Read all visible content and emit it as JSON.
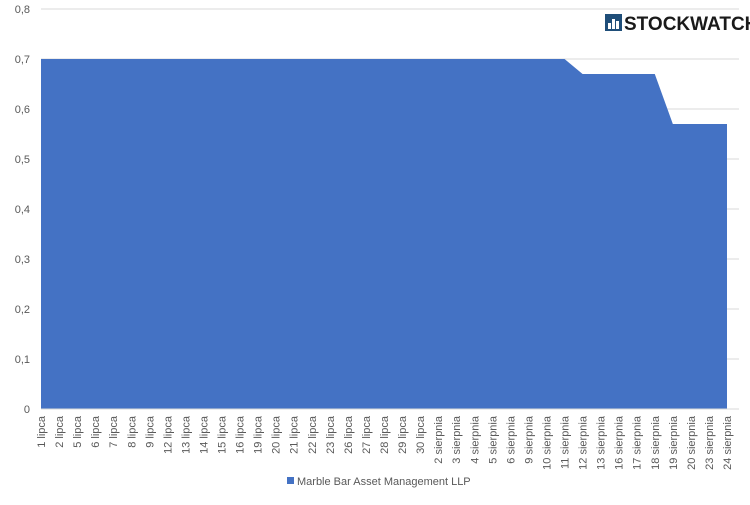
{
  "chart_data": {
    "type": "area",
    "brand": "STOCKWATCH",
    "categories": [
      "1 lipca",
      "2 lipca",
      "5 lipca",
      "6 lipca",
      "7 lipca",
      "8 lipca",
      "9 lipca",
      "12 lipca",
      "13 lipca",
      "14 lipca",
      "15 lipca",
      "16 lipca",
      "19 lipca",
      "20 lipca",
      "21 lipca",
      "22 lipca",
      "23 lipca",
      "26 lipca",
      "27 lipca",
      "28 lipca",
      "29 lipca",
      "30 lipca",
      "2 sierpnia",
      "3 sierpnia",
      "4 sierpnia",
      "5 sierpnia",
      "6 sierpnia",
      "9 sierpnia",
      "10 sierpnia",
      "11 sierpnia",
      "12 sierpnia",
      "13 sierpnia",
      "16 sierpnia",
      "17 sierpnia",
      "18 sierpnia",
      "19 sierpnia",
      "20 sierpnia",
      "23 sierpnia",
      "24 sierpnia"
    ],
    "series": [
      {
        "name": "Marble Bar Asset Management LLP",
        "color": "#4472c4",
        "values": [
          0.7,
          0.7,
          0.7,
          0.7,
          0.7,
          0.7,
          0.7,
          0.7,
          0.7,
          0.7,
          0.7,
          0.7,
          0.7,
          0.7,
          0.7,
          0.7,
          0.7,
          0.7,
          0.7,
          0.7,
          0.7,
          0.7,
          0.7,
          0.7,
          0.7,
          0.7,
          0.7,
          0.7,
          0.7,
          0.7,
          0.67,
          0.67,
          0.67,
          0.67,
          0.67,
          0.57,
          0.57,
          0.57,
          0.57
        ]
      }
    ],
    "ylim": [
      0,
      0.8
    ],
    "yticks": [
      0,
      {
        "value": 0.1,
        "label": "0,1"
      },
      {
        "value": 0.2,
        "label": "0,2"
      },
      {
        "value": 0.3,
        "label": "0,3"
      },
      {
        "value": 0.4,
        "label": "0,4"
      },
      {
        "value": 0.5,
        "label": "0,5"
      },
      {
        "value": 0.6,
        "label": "0,6"
      },
      {
        "value": 0.7,
        "label": "0,7"
      },
      {
        "value": 0.8,
        "label": "0,8"
      }
    ],
    "grid": true,
    "legend": "bottom"
  }
}
